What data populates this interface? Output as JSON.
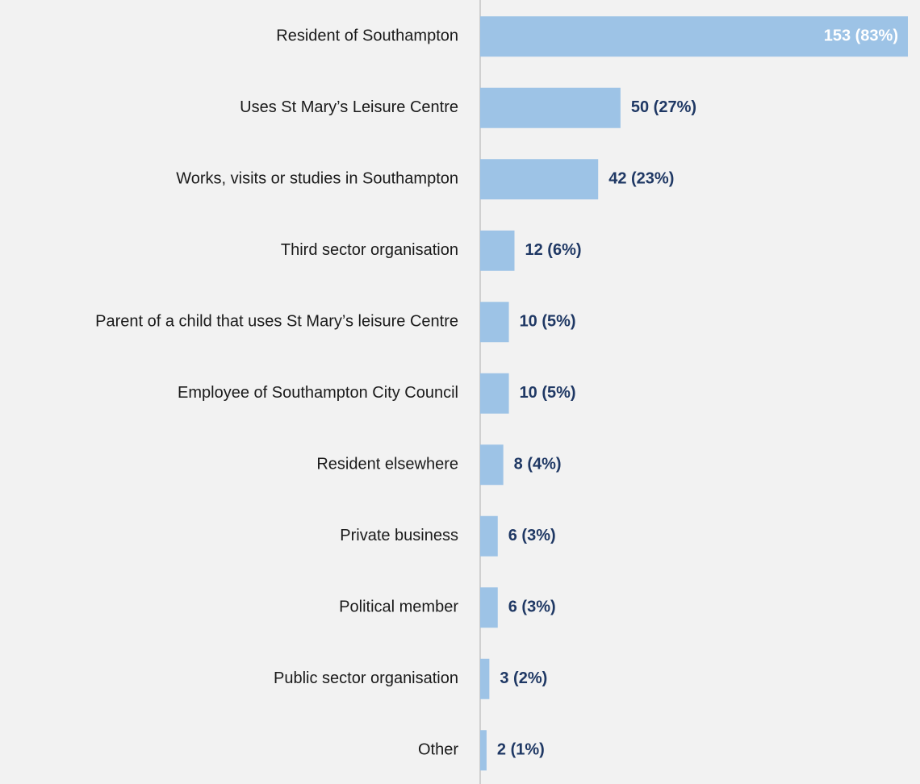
{
  "chart_data": {
    "type": "barh",
    "categories": [
      "Resident of Southampton",
      "Uses St Mary’s Leisure Centre",
      "Works, visits or studies in Southampton",
      "Third sector organisation",
      "Parent of a child that uses St Mary’s leisure Centre",
      "Employee of Southampton City Council",
      "Resident elsewhere",
      "Private business",
      "Political member",
      "Public sector organisation",
      "Other"
    ],
    "values": [
      153,
      50,
      42,
      12,
      10,
      10,
      8,
      6,
      6,
      3,
      2
    ],
    "value_labels": [
      "153 (83%)",
      "50 (27%)",
      "42 (23%)",
      "12 (6%)",
      "10 (5%)",
      "10 (5%)",
      "8 (4%)",
      "6 (3%)",
      "6 (3%)",
      "3 (2%)",
      "2 (1%)"
    ],
    "color": "#9dc3e6"
  }
}
